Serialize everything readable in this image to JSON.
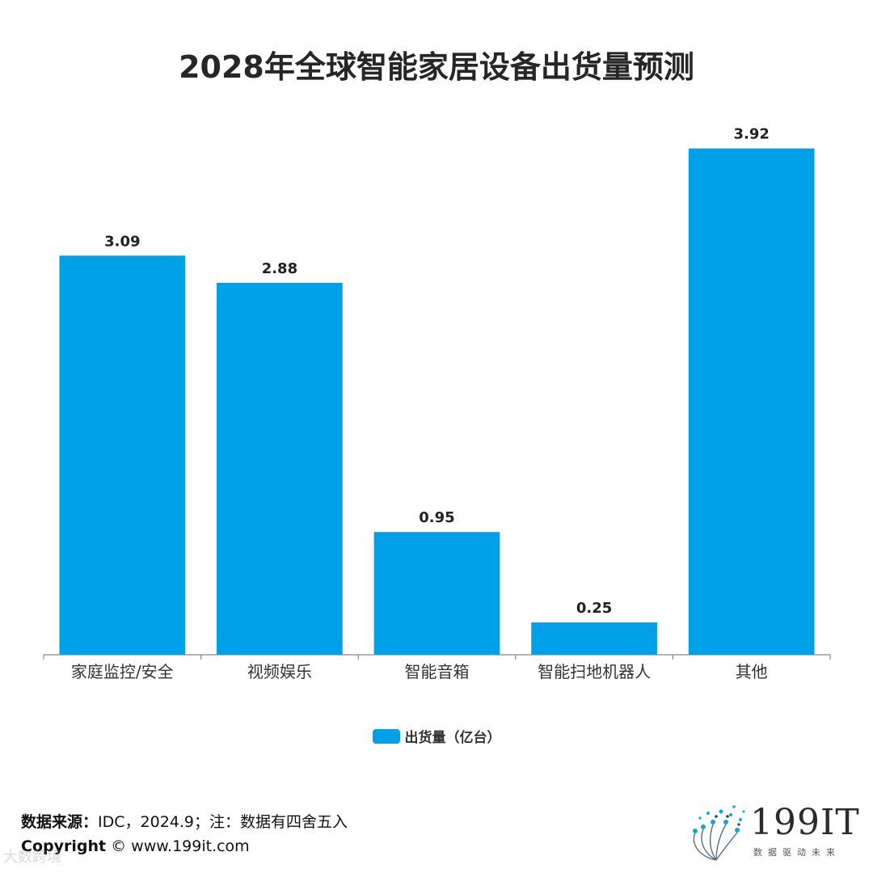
{
  "title": "2028年全球智能家居设备出货量预测",
  "chart_data": {
    "type": "bar",
    "categories": [
      "家庭监控/安全",
      "视频娱乐",
      "智能音箱",
      "智能扫地机器人",
      "其他"
    ],
    "series": [
      {
        "name": "出货量（亿台）",
        "values": [
          3.09,
          2.88,
          0.95,
          0.25,
          3.92
        ],
        "color": "#00a0e9"
      }
    ],
    "data_labels": [
      "3.09",
      "2.88",
      "0.95",
      "0.25",
      "3.92"
    ],
    "ylim": [
      0,
      4.6
    ],
    "grid": false,
    "legend_position": "bottom"
  },
  "footer": {
    "source_label": "数据来源：",
    "source_text": "IDC，2024.9；注：数据有四舍五入",
    "copyright_label": "Copyright",
    "copyright_text": "© www.199it.com"
  },
  "watermark": "大数跨境",
  "logo": {
    "name": "199IT",
    "tagline": "数据驱动未来"
  }
}
